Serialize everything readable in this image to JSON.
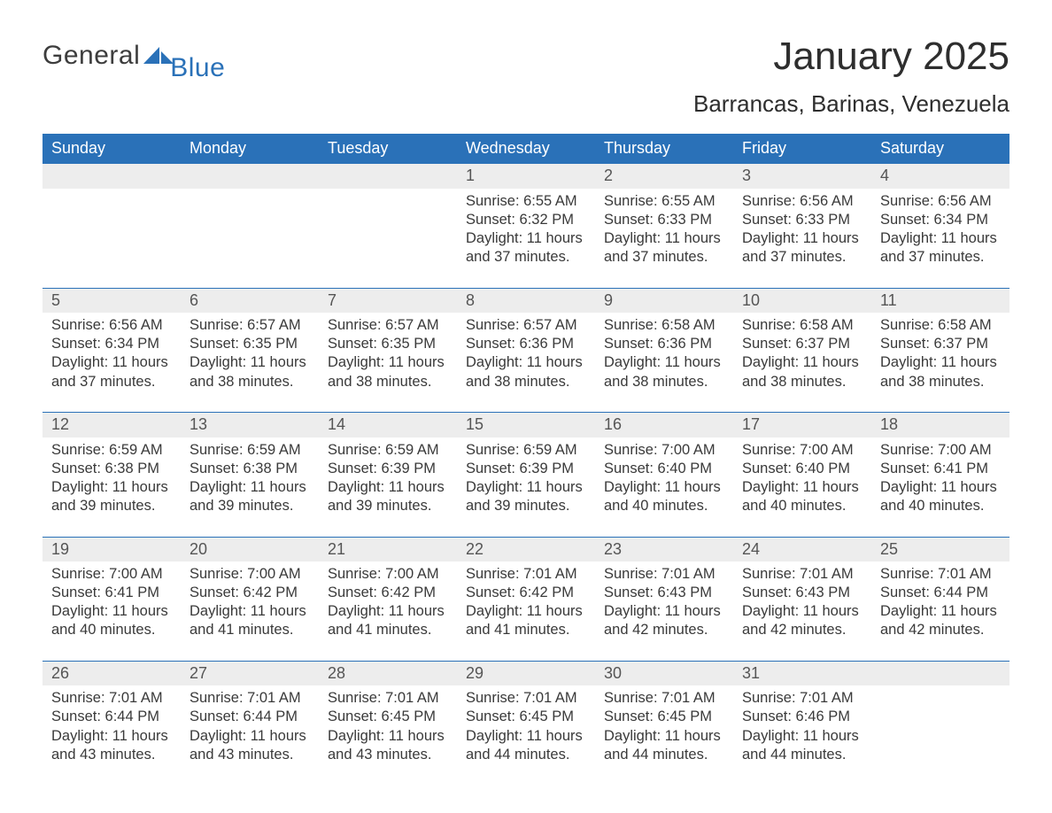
{
  "brand": {
    "general": "General",
    "blue": "Blue",
    "shape_color": "#2a71b8"
  },
  "title": "January 2025",
  "location": "Barrancas, Barinas, Venezuela",
  "colors": {
    "header_bg": "#2a71b8",
    "header_text": "#ffffff",
    "daynum_bg": "#ededed",
    "daynum_text": "#555555",
    "body_text": "#3a3a3a",
    "row_divider": "#2a71b8",
    "page_bg": "#ffffff"
  },
  "typography": {
    "title_fontsize_pt": 33,
    "location_fontsize_pt": 19,
    "header_fontsize_pt": 13,
    "daynum_fontsize_pt": 13,
    "body_fontsize_pt": 12,
    "logo_fontsize_pt": 22
  },
  "labels": {
    "sunrise_prefix": "Sunrise: ",
    "sunset_prefix": "Sunset: ",
    "daylight_prefix": "Daylight: ",
    "hours_word": " hours",
    "and_word": "and ",
    "minutes_word": " minutes."
  },
  "weekdays": [
    "Sunday",
    "Monday",
    "Tuesday",
    "Wednesday",
    "Thursday",
    "Friday",
    "Saturday"
  ],
  "weeks": [
    [
      null,
      null,
      null,
      {
        "day": 1,
        "sunrise": "6:55 AM",
        "sunset": "6:32 PM",
        "dl_h": 11,
        "dl_m": 37
      },
      {
        "day": 2,
        "sunrise": "6:55 AM",
        "sunset": "6:33 PM",
        "dl_h": 11,
        "dl_m": 37
      },
      {
        "day": 3,
        "sunrise": "6:56 AM",
        "sunset": "6:33 PM",
        "dl_h": 11,
        "dl_m": 37
      },
      {
        "day": 4,
        "sunrise": "6:56 AM",
        "sunset": "6:34 PM",
        "dl_h": 11,
        "dl_m": 37
      }
    ],
    [
      {
        "day": 5,
        "sunrise": "6:56 AM",
        "sunset": "6:34 PM",
        "dl_h": 11,
        "dl_m": 37
      },
      {
        "day": 6,
        "sunrise": "6:57 AM",
        "sunset": "6:35 PM",
        "dl_h": 11,
        "dl_m": 38
      },
      {
        "day": 7,
        "sunrise": "6:57 AM",
        "sunset": "6:35 PM",
        "dl_h": 11,
        "dl_m": 38
      },
      {
        "day": 8,
        "sunrise": "6:57 AM",
        "sunset": "6:36 PM",
        "dl_h": 11,
        "dl_m": 38
      },
      {
        "day": 9,
        "sunrise": "6:58 AM",
        "sunset": "6:36 PM",
        "dl_h": 11,
        "dl_m": 38
      },
      {
        "day": 10,
        "sunrise": "6:58 AM",
        "sunset": "6:37 PM",
        "dl_h": 11,
        "dl_m": 38
      },
      {
        "day": 11,
        "sunrise": "6:58 AM",
        "sunset": "6:37 PM",
        "dl_h": 11,
        "dl_m": 38
      }
    ],
    [
      {
        "day": 12,
        "sunrise": "6:59 AM",
        "sunset": "6:38 PM",
        "dl_h": 11,
        "dl_m": 39
      },
      {
        "day": 13,
        "sunrise": "6:59 AM",
        "sunset": "6:38 PM",
        "dl_h": 11,
        "dl_m": 39
      },
      {
        "day": 14,
        "sunrise": "6:59 AM",
        "sunset": "6:39 PM",
        "dl_h": 11,
        "dl_m": 39
      },
      {
        "day": 15,
        "sunrise": "6:59 AM",
        "sunset": "6:39 PM",
        "dl_h": 11,
        "dl_m": 39
      },
      {
        "day": 16,
        "sunrise": "7:00 AM",
        "sunset": "6:40 PM",
        "dl_h": 11,
        "dl_m": 40
      },
      {
        "day": 17,
        "sunrise": "7:00 AM",
        "sunset": "6:40 PM",
        "dl_h": 11,
        "dl_m": 40
      },
      {
        "day": 18,
        "sunrise": "7:00 AM",
        "sunset": "6:41 PM",
        "dl_h": 11,
        "dl_m": 40
      }
    ],
    [
      {
        "day": 19,
        "sunrise": "7:00 AM",
        "sunset": "6:41 PM",
        "dl_h": 11,
        "dl_m": 40
      },
      {
        "day": 20,
        "sunrise": "7:00 AM",
        "sunset": "6:42 PM",
        "dl_h": 11,
        "dl_m": 41
      },
      {
        "day": 21,
        "sunrise": "7:00 AM",
        "sunset": "6:42 PM",
        "dl_h": 11,
        "dl_m": 41
      },
      {
        "day": 22,
        "sunrise": "7:01 AM",
        "sunset": "6:42 PM",
        "dl_h": 11,
        "dl_m": 41
      },
      {
        "day": 23,
        "sunrise": "7:01 AM",
        "sunset": "6:43 PM",
        "dl_h": 11,
        "dl_m": 42
      },
      {
        "day": 24,
        "sunrise": "7:01 AM",
        "sunset": "6:43 PM",
        "dl_h": 11,
        "dl_m": 42
      },
      {
        "day": 25,
        "sunrise": "7:01 AM",
        "sunset": "6:44 PM",
        "dl_h": 11,
        "dl_m": 42
      }
    ],
    [
      {
        "day": 26,
        "sunrise": "7:01 AM",
        "sunset": "6:44 PM",
        "dl_h": 11,
        "dl_m": 43
      },
      {
        "day": 27,
        "sunrise": "7:01 AM",
        "sunset": "6:44 PM",
        "dl_h": 11,
        "dl_m": 43
      },
      {
        "day": 28,
        "sunrise": "7:01 AM",
        "sunset": "6:45 PM",
        "dl_h": 11,
        "dl_m": 43
      },
      {
        "day": 29,
        "sunrise": "7:01 AM",
        "sunset": "6:45 PM",
        "dl_h": 11,
        "dl_m": 44
      },
      {
        "day": 30,
        "sunrise": "7:01 AM",
        "sunset": "6:45 PM",
        "dl_h": 11,
        "dl_m": 44
      },
      {
        "day": 31,
        "sunrise": "7:01 AM",
        "sunset": "6:46 PM",
        "dl_h": 11,
        "dl_m": 44
      },
      null
    ]
  ]
}
